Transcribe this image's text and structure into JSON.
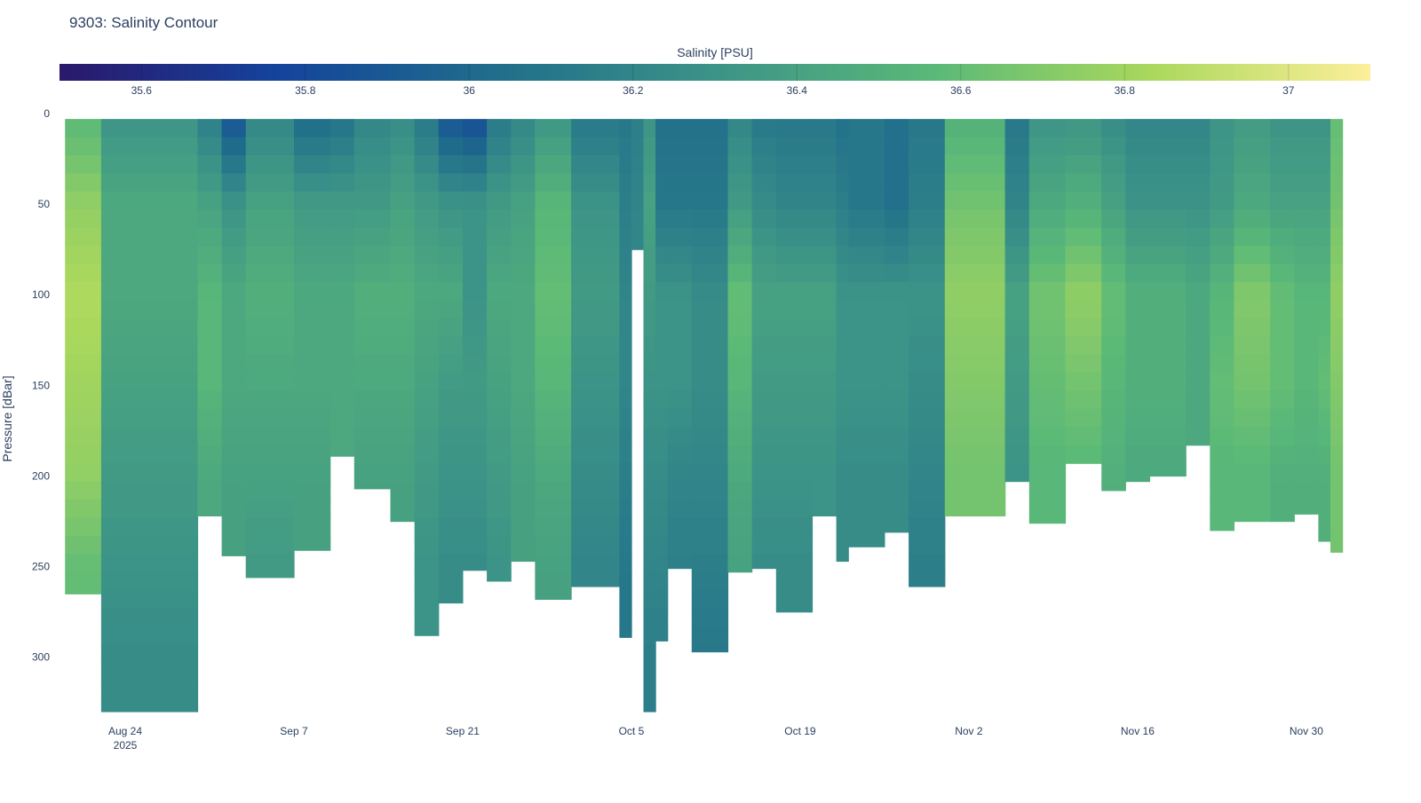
{
  "chart_data": {
    "type": "heatmap",
    "title": "9303: Salinity Contour",
    "xlabel": "",
    "ylabel": "Pressure [dBar]",
    "colorbar_title": "Salinity [PSU]",
    "colorbar_ticks": [
      35.6,
      35.8,
      36,
      36.2,
      36.4,
      36.6,
      36.8,
      37
    ],
    "colorbar_tick_labels": [
      "35.6",
      "35.8",
      "36",
      "36.2",
      "36.4",
      "36.6",
      "36.8",
      "37"
    ],
    "zlim": [
      35.5,
      37.1
    ],
    "colorscale": [
      "#2a186c",
      "#14439c",
      "#206e8b",
      "#3c9387",
      "#5ab978",
      "#aad85c",
      "#fdef9a"
    ],
    "ylim": [
      0,
      330
    ],
    "y_ticks": [
      0,
      50,
      100,
      150,
      200,
      250,
      300
    ],
    "y_tick_labels": [
      "0",
      "50",
      "100",
      "150",
      "200",
      "250",
      "300"
    ],
    "xlim": [
      "2025-08-18",
      "2025-12-05"
    ],
    "x_ticks": [
      "2025-08-24",
      "2025-09-07",
      "2025-09-21",
      "2025-10-05",
      "2025-10-19",
      "2025-11-02",
      "2025-11-16",
      "2025-11-30"
    ],
    "x_tick_labels": [
      "Aug 24",
      "Sep 7",
      "Sep 21",
      "Oct 5",
      "Oct 19",
      "Nov 2",
      "Nov 16",
      "Nov 30"
    ],
    "x_tick_year": "2025",
    "profile_pressures": [
      0,
      50,
      100,
      150,
      200,
      250,
      300,
      330
    ],
    "end_date": "2025-12-03",
    "profiles": [
      {
        "date": "2025-08-19",
        "max_pressure": 265,
        "salinity": [
          36.55,
          36.75,
          36.85,
          36.8,
          36.75,
          36.6
        ]
      },
      {
        "date": "2025-08-22",
        "max_pressure": 330,
        "salinity": [
          36.3,
          36.45,
          36.45,
          36.4,
          36.35,
          36.3,
          36.25,
          36.25
        ]
      },
      {
        "date": "2025-08-30",
        "max_pressure": 222,
        "salinity": [
          36.15,
          36.4,
          36.55,
          36.55,
          36.45
        ]
      },
      {
        "date": "2025-09-01",
        "max_pressure": 244,
        "salinity": [
          35.85,
          36.3,
          36.45,
          36.45,
          36.4
        ]
      },
      {
        "date": "2025-09-03",
        "max_pressure": 256,
        "salinity": [
          36.2,
          36.4,
          36.5,
          36.45,
          36.4,
          36.35
        ]
      },
      {
        "date": "2025-09-07",
        "max_pressure": 241,
        "salinity": [
          36.0,
          36.35,
          36.45,
          36.45,
          36.4
        ]
      },
      {
        "date": "2025-09-10",
        "max_pressure": 189,
        "salinity": [
          36.05,
          36.35,
          36.45,
          36.45
        ]
      },
      {
        "date": "2025-09-12",
        "max_pressure": 207,
        "salinity": [
          36.2,
          36.35,
          36.5,
          36.45,
          36.4
        ]
      },
      {
        "date": "2025-09-15",
        "max_pressure": 225,
        "salinity": [
          36.25,
          36.4,
          36.5,
          36.45,
          36.4
        ]
      },
      {
        "date": "2025-09-17",
        "max_pressure": 288,
        "salinity": [
          36.1,
          36.35,
          36.45,
          36.4,
          36.35,
          36.3
        ]
      },
      {
        "date": "2025-09-19",
        "max_pressure": 270,
        "salinity": [
          35.85,
          36.3,
          36.45,
          36.35,
          36.3,
          36.25
        ]
      },
      {
        "date": "2025-09-21",
        "max_pressure": 252,
        "salinity": [
          35.8,
          36.3,
          36.3,
          36.35,
          36.3,
          36.25
        ]
      },
      {
        "date": "2025-09-23",
        "max_pressure": 258,
        "salinity": [
          36.1,
          36.35,
          36.45,
          36.4,
          36.35,
          36.3
        ]
      },
      {
        "date": "2025-09-25",
        "max_pressure": 247,
        "salinity": [
          36.2,
          36.4,
          36.45,
          36.45,
          36.4
        ]
      },
      {
        "date": "2025-09-27",
        "max_pressure": 268,
        "salinity": [
          36.3,
          36.55,
          36.6,
          36.55,
          36.45,
          36.4
        ]
      },
      {
        "date": "2025-09-30",
        "max_pressure": 261,
        "salinity": [
          36.1,
          36.3,
          36.35,
          36.3,
          36.25,
          36.2
        ]
      },
      {
        "date": "2025-10-04",
        "max_pressure": 289,
        "salinity": [
          36.1,
          36.15,
          36.2,
          36.2,
          36.15,
          36.1
        ]
      },
      {
        "date": "2025-10-05",
        "max_pressure": 75,
        "salinity": [
          36.15,
          36.2
        ]
      },
      {
        "date": "2025-10-06",
        "max_pressure": 330,
        "salinity": [
          36.3,
          36.4,
          36.35,
          36.3,
          36.25,
          36.2,
          36.15,
          36.15
        ]
      },
      {
        "date": "2025-10-07",
        "max_pressure": 291,
        "salinity": [
          36.05,
          36.1,
          36.3,
          36.3,
          36.25,
          36.2,
          36.15
        ]
      },
      {
        "date": "2025-10-08",
        "max_pressure": 251,
        "salinity": [
          36.05,
          36.1,
          36.3,
          36.3,
          36.2,
          36.15
        ]
      },
      {
        "date": "2025-10-10",
        "max_pressure": 297,
        "salinity": [
          36.05,
          36.1,
          36.25,
          36.25,
          36.2,
          36.15,
          36.1
        ]
      },
      {
        "date": "2025-10-13",
        "max_pressure": 253,
        "salinity": [
          36.2,
          36.35,
          36.6,
          36.55,
          36.45,
          36.4
        ]
      },
      {
        "date": "2025-10-15",
        "max_pressure": 251,
        "salinity": [
          36.1,
          36.25,
          36.4,
          36.35,
          36.3,
          36.25
        ]
      },
      {
        "date": "2025-10-17",
        "max_pressure": 275,
        "salinity": [
          36.1,
          36.2,
          36.4,
          36.35,
          36.3,
          36.25
        ]
      },
      {
        "date": "2025-10-20",
        "max_pressure": 222,
        "salinity": [
          36.1,
          36.2,
          36.4,
          36.35,
          36.3
        ]
      },
      {
        "date": "2025-10-22",
        "max_pressure": 247,
        "salinity": [
          36.05,
          36.15,
          36.3,
          36.3,
          36.25
        ]
      },
      {
        "date": "2025-10-23",
        "max_pressure": 239,
        "salinity": [
          36.1,
          36.1,
          36.3,
          36.3,
          36.25
        ]
      },
      {
        "date": "2025-10-26",
        "max_pressure": 231,
        "salinity": [
          36.05,
          36.05,
          36.3,
          36.3,
          36.25
        ]
      },
      {
        "date": "2025-10-28",
        "max_pressure": 261,
        "salinity": [
          36.1,
          36.15,
          36.3,
          36.25,
          36.2,
          36.15
        ]
      },
      {
        "date": "2025-10-31",
        "max_pressure": 222,
        "salinity": [
          36.5,
          36.65,
          36.75,
          36.7,
          36.65
        ]
      },
      {
        "date": "2025-11-05",
        "max_pressure": 203,
        "salinity": [
          36.1,
          36.2,
          36.4,
          36.35,
          36.3
        ]
      },
      {
        "date": "2025-11-07",
        "max_pressure": 226,
        "salinity": [
          36.3,
          36.45,
          36.65,
          36.6,
          36.55
        ]
      },
      {
        "date": "2025-11-10",
        "max_pressure": 193,
        "salinity": [
          36.3,
          36.5,
          36.75,
          36.65,
          36.55
        ]
      },
      {
        "date": "2025-11-13",
        "max_pressure": 208,
        "salinity": [
          36.25,
          36.4,
          36.6,
          36.55,
          36.5
        ]
      },
      {
        "date": "2025-11-15",
        "max_pressure": 203,
        "salinity": [
          36.2,
          36.3,
          36.5,
          36.5,
          36.45
        ]
      },
      {
        "date": "2025-11-17",
        "max_pressure": 200,
        "salinity": [
          36.2,
          36.3,
          36.5,
          36.5,
          36.45
        ]
      },
      {
        "date": "2025-11-20",
        "max_pressure": 183,
        "salinity": [
          36.2,
          36.3,
          36.45,
          36.45
        ]
      },
      {
        "date": "2025-11-22",
        "max_pressure": 230,
        "salinity": [
          36.3,
          36.35,
          36.55,
          36.6,
          36.55
        ]
      },
      {
        "date": "2025-11-24",
        "max_pressure": 225,
        "salinity": [
          36.35,
          36.45,
          36.7,
          36.65,
          36.55
        ]
      },
      {
        "date": "2025-11-27",
        "max_pressure": 225,
        "salinity": [
          36.3,
          36.4,
          36.6,
          36.6,
          36.5
        ]
      },
      {
        "date": "2025-11-29",
        "max_pressure": 221,
        "salinity": [
          36.3,
          36.4,
          36.55,
          36.55,
          36.5
        ]
      },
      {
        "date": "2025-12-01",
        "max_pressure": 236,
        "salinity": [
          36.3,
          36.4,
          36.55,
          36.6,
          36.5
        ]
      },
      {
        "date": "2025-12-02",
        "max_pressure": 242,
        "salinity": [
          36.6,
          36.65,
          36.75,
          36.7,
          36.65
        ]
      }
    ]
  }
}
